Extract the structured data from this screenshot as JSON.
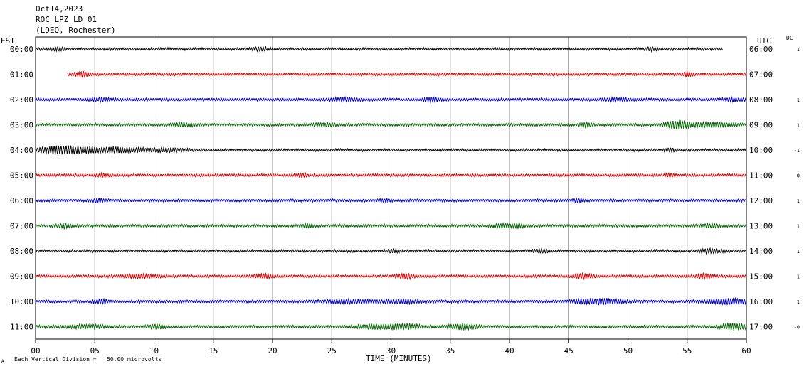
{
  "chart_data": {
    "type": "line",
    "title_lines": [
      "Oct14,2023",
      "ROC LPZ LD 01",
      "(LDEO, Rochester)"
    ],
    "left_axis_label": "EST",
    "right_axis_label": "UTC",
    "dc_label": "DC",
    "xlabel": "TIME (MINUTES)",
    "x_ticks": [
      "00",
      "05",
      "10",
      "15",
      "20",
      "25",
      "30",
      "35",
      "40",
      "45",
      "50",
      "55",
      "60"
    ],
    "xlim": [
      0,
      60
    ],
    "grid": true,
    "footer_mark": "A",
    "footer_note": "Each Vertical Division =   50.00 microvolts",
    "colors": {
      "black": "#000000",
      "red": "#e00000",
      "blue": "#0000d0",
      "green": "#006400"
    },
    "rows": [
      {
        "est": "00:00",
        "utc": "06:00",
        "dc": "1",
        "color": "#000000",
        "start": 0,
        "end": 58,
        "bursts": [
          [
            1.8,
            0.6,
            1.5
          ],
          [
            19,
            0.8,
            1.4
          ],
          [
            52,
            0.5,
            1.8
          ]
        ]
      },
      {
        "est": "01:00",
        "utc": "07:00",
        "dc": "",
        "color": "#e00000",
        "start": 2.7,
        "end": 60,
        "bursts": [
          [
            4,
            0.6,
            2.5
          ],
          [
            55,
            0.4,
            2.0
          ]
        ]
      },
      {
        "est": "02:00",
        "utc": "08:00",
        "dc": "1",
        "color": "#0000d0",
        "start": 0,
        "end": 60,
        "bursts": [
          [
            5.5,
            1.0,
            1.6
          ],
          [
            26,
            1.2,
            1.7
          ],
          [
            33.5,
            0.7,
            2.3
          ],
          [
            49,
            1.2,
            1.6
          ],
          [
            59,
            1.0,
            1.5
          ]
        ]
      },
      {
        "est": "03:00",
        "utc": "09:00",
        "dc": "1",
        "color": "#006400",
        "start": 0,
        "end": 60,
        "bursts": [
          [
            12.5,
            1.0,
            1.6
          ],
          [
            24.5,
            1.0,
            1.6
          ],
          [
            46.5,
            0.5,
            2.6
          ],
          [
            54.2,
            1.0,
            4.5
          ],
          [
            57,
            2.0,
            2.3
          ]
        ]
      },
      {
        "est": "04:00",
        "utc": "10:00",
        "dc": "-1",
        "color": "#000000",
        "start": 0,
        "end": 60,
        "bursts": [
          [
            2.5,
            2.5,
            4.3
          ],
          [
            7,
            2.0,
            2.4
          ],
          [
            11,
            2.0,
            1.6
          ],
          [
            53.5,
            0.5,
            1.6
          ]
        ]
      },
      {
        "est": "05:00",
        "utc": "11:00",
        "dc": "0",
        "color": "#e00000",
        "start": 0,
        "end": 60,
        "bursts": [
          [
            5.7,
            0.5,
            1.6
          ],
          [
            22.5,
            0.5,
            1.6
          ],
          [
            53.5,
            0.4,
            2.0
          ]
        ]
      },
      {
        "est": "06:00",
        "utc": "12:00",
        "dc": "1",
        "color": "#0000d0",
        "start": 0,
        "end": 60,
        "bursts": [
          [
            5.3,
            0.5,
            2.0
          ],
          [
            29.5,
            0.5,
            1.6
          ],
          [
            45.8,
            0.5,
            1.6
          ]
        ]
      },
      {
        "est": "07:00",
        "utc": "13:00",
        "dc": "1",
        "color": "#006400",
        "start": 0,
        "end": 60,
        "bursts": [
          [
            2.5,
            0.6,
            2.0
          ],
          [
            23,
            0.6,
            1.8
          ],
          [
            39.5,
            0.8,
            1.9
          ],
          [
            40.8,
            0.5,
            2.0
          ],
          [
            57,
            0.8,
            1.6
          ]
        ]
      },
      {
        "est": "08:00",
        "utc": "14:00",
        "dc": "1",
        "color": "#000000",
        "start": 0,
        "end": 60,
        "bursts": [
          [
            30.2,
            0.5,
            1.7
          ],
          [
            42.7,
            0.7,
            1.6
          ],
          [
            57,
            1.0,
            1.8
          ]
        ]
      },
      {
        "est": "09:00",
        "utc": "15:00",
        "dc": "1",
        "color": "#e00000",
        "start": 0,
        "end": 60,
        "bursts": [
          [
            9,
            1.5,
            1.7
          ],
          [
            19.2,
            1.0,
            1.9
          ],
          [
            31.2,
            0.8,
            2.2
          ],
          [
            46.2,
            0.8,
            2.4
          ],
          [
            56.5,
            0.7,
            2.5
          ]
        ]
      },
      {
        "est": "10:00",
        "utc": "16:00",
        "dc": "1",
        "color": "#0000d0",
        "start": 0,
        "end": 60,
        "bursts": [
          [
            5.5,
            0.7,
            2.1
          ],
          [
            26.5,
            2.5,
            1.8
          ],
          [
            31,
            1.5,
            1.8
          ],
          [
            47.5,
            2.0,
            2.9
          ],
          [
            58.5,
            2.0,
            2.7
          ]
        ]
      },
      {
        "est": "11:00",
        "utc": "17:00",
        "dc": "-0",
        "color": "#006400",
        "start": 0,
        "end": 60,
        "bursts": [
          [
            4,
            2.0,
            1.6
          ],
          [
            10.3,
            0.7,
            2.0
          ],
          [
            28.5,
            1.5,
            1.8
          ],
          [
            31,
            1.5,
            2.6
          ],
          [
            36,
            1.2,
            2.6
          ],
          [
            59,
            1.2,
            3.3
          ]
        ]
      }
    ]
  }
}
